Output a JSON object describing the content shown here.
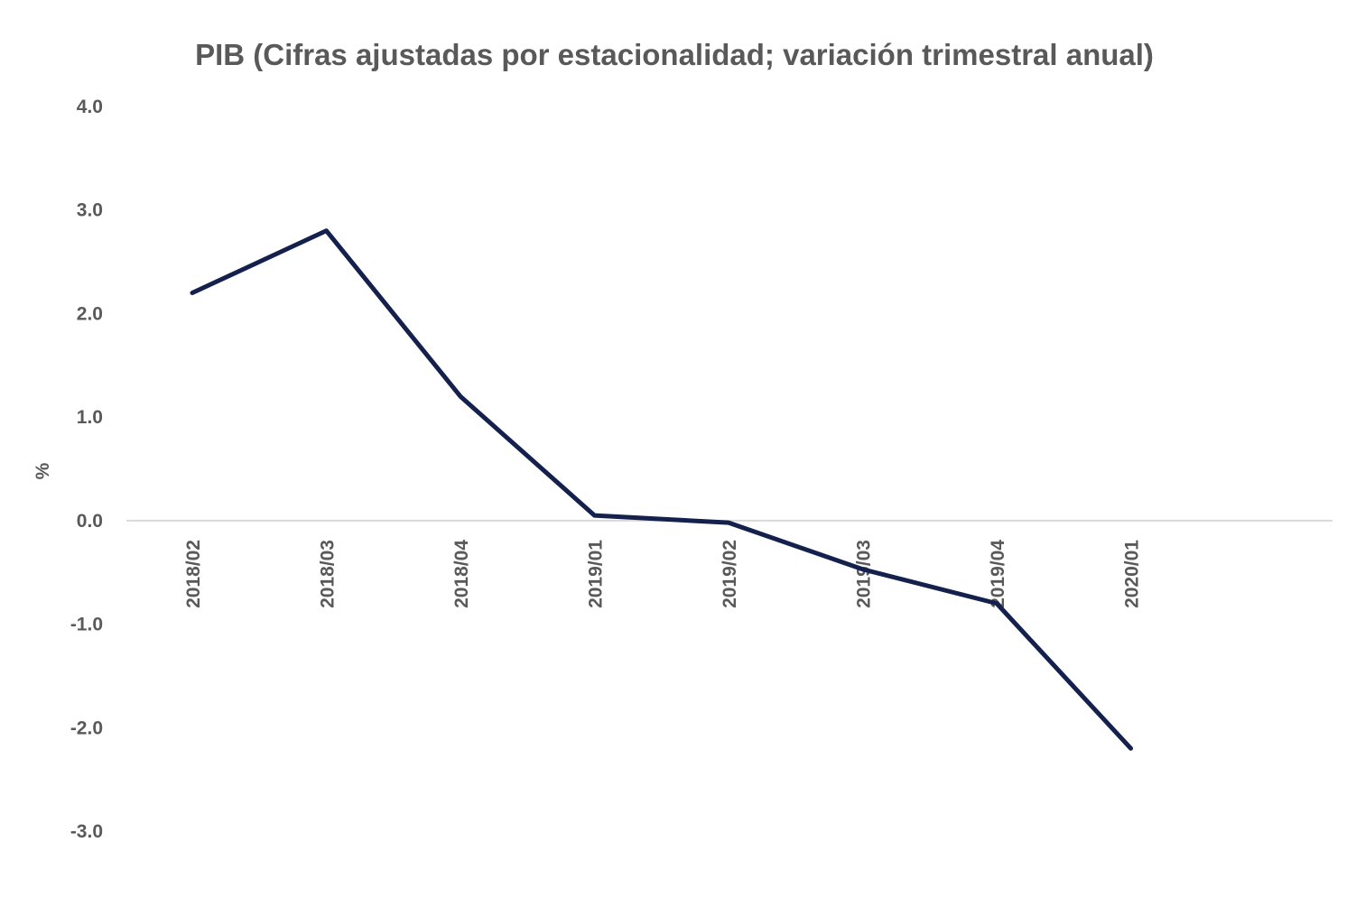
{
  "chart_data": {
    "type": "line",
    "title": "PIB (Cifras ajustadas por estacionalidad; variación trimestral anual)",
    "xlabel": "",
    "ylabel": "%",
    "categories": [
      "2018/02",
      "2018/03",
      "2018/04",
      "2019/01",
      "2019/02",
      "2019/03",
      "2019/04",
      "2020/01"
    ],
    "series": [
      {
        "values": [
          2.2,
          2.8,
          1.2,
          0.05,
          -0.02,
          -0.47,
          -0.8,
          -2.2
        ]
      }
    ],
    "ylim": [
      -3.0,
      4.0
    ],
    "yticks": [
      "4.0",
      "3.0",
      "2.0",
      "1.0",
      "0.0",
      "-1.0",
      "-2.0",
      "-3.0"
    ],
    "ytick_values": [
      4,
      3,
      2,
      1,
      0,
      -1,
      -2,
      -3
    ],
    "grid": false,
    "legend": "none",
    "colors": {
      "line": "#14214d",
      "axis": "#d9d9d9",
      "text": "#595959"
    }
  }
}
